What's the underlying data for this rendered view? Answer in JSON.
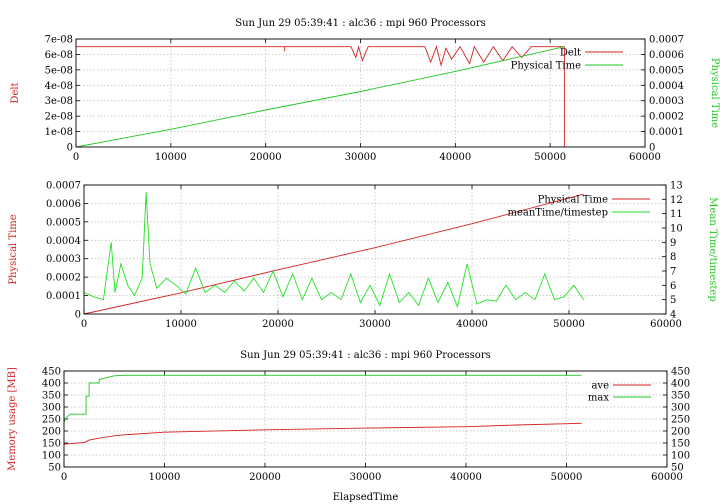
{
  "chart_data": [
    {
      "type": "line",
      "title": "Sun Jun 29 05:39:41 : alc36 : mpi 960 Processors",
      "xlabel": "",
      "ylabel": "Delt",
      "y2label": "Physical Time",
      "xlim": [
        0,
        60000
      ],
      "ylim": [
        0,
        7e-08
      ],
      "y2lim": [
        0,
        0.0007
      ],
      "xticks": [
        "0",
        "10000",
        "20000",
        "30000",
        "40000",
        "50000",
        "60000"
      ],
      "yticks": [
        "0",
        "1e-08",
        "2e-08",
        "3e-08",
        "4e-08",
        "5e-08",
        "6e-08",
        "7e-08"
      ],
      "y2ticks": [
        "0",
        "0.0001",
        "0.0002",
        "0.0003",
        "0.0004",
        "0.0005",
        "0.0006",
        "0.0007"
      ],
      "grid": true,
      "legend_position": "top-right",
      "series": [
        {
          "name": "Delt",
          "axis": "left",
          "color": "#d22222",
          "x": [
            0,
            22000,
            22000,
            22000,
            29000,
            29500,
            29800,
            30200,
            30800,
            31500,
            33000,
            35000,
            36800,
            37400,
            38000,
            38500,
            39000,
            39600,
            40500,
            41500,
            42000,
            43000,
            44000,
            45000,
            46000,
            47000,
            48000,
            50000,
            51000,
            51500,
            51500,
            51500
          ],
          "y": [
            6.5e-08,
            6.5e-08,
            6.2e-08,
            6.5e-08,
            6.5e-08,
            5.8e-08,
            6.5e-08,
            5.6e-08,
            6.5e-08,
            6.5e-08,
            6.5e-08,
            6.5e-08,
            6.5e-08,
            5.5e-08,
            6.5e-08,
            5.3e-08,
            6.4e-08,
            5.7e-08,
            6.5e-08,
            5.4e-08,
            6.5e-08,
            5.5e-08,
            6.5e-08,
            5.6e-08,
            6.5e-08,
            5.8e-08,
            6.5e-08,
            6.5e-08,
            6.5e-08,
            6.5e-08,
            0,
            0
          ]
        },
        {
          "name": "Physical Time",
          "axis": "right",
          "color": "#22c822",
          "x": [
            0,
            10000,
            20000,
            30000,
            40000,
            51500
          ],
          "y": [
            0.0,
            0.000115,
            0.00024,
            0.00036,
            0.00049,
            0.00065
          ]
        }
      ]
    },
    {
      "type": "line",
      "title": "",
      "xlabel": "",
      "ylabel": "Physical Time",
      "y2label": "Mean Time/timestep",
      "xlim": [
        0,
        60000
      ],
      "ylim": [
        0,
        0.0007
      ],
      "y2lim": [
        4,
        13
      ],
      "xticks": [
        "0",
        "10000",
        "20000",
        "30000",
        "40000",
        "50000",
        "60000"
      ],
      "yticks": [
        "0",
        "0.0001",
        "0.0002",
        "0.0003",
        "0.0004",
        "0.0005",
        "0.0006",
        "0.0007"
      ],
      "y2ticks": [
        "4",
        "5",
        "6",
        "7",
        "8",
        "9",
        "10",
        "11",
        "12",
        "13"
      ],
      "grid": true,
      "legend_position": "top-right",
      "series": [
        {
          "name": "Physical Time",
          "axis": "left",
          "color": "#d22222",
          "x": [
            0,
            10000,
            20000,
            30000,
            40000,
            51500
          ],
          "y": [
            0.0,
            0.000115,
            0.00024,
            0.00036,
            0.00049,
            0.00065
          ]
        },
        {
          "name": "meanTime/timestep",
          "axis": "right",
          "color": "#22e222",
          "x": [
            0,
            1000,
            2000,
            2800,
            3200,
            3800,
            4500,
            5200,
            6000,
            6400,
            6800,
            7500,
            8500,
            9500,
            10500,
            11500,
            12500,
            13500,
            14500,
            15500,
            16500,
            17500,
            18500,
            19500,
            20500,
            21500,
            22500,
            23500,
            24500,
            25500,
            26500,
            27500,
            28500,
            29500,
            30500,
            31500,
            32500,
            33500,
            34500,
            35500,
            36500,
            37500,
            38500,
            39500,
            40500,
            41500,
            42500,
            43500,
            44500,
            45500,
            46500,
            47500,
            48500,
            49500,
            50500,
            51500
          ],
          "y": [
            5.5,
            5.2,
            5.0,
            9.0,
            5.5,
            7.5,
            6.0,
            5.3,
            6.5,
            12.5,
            7.5,
            5.8,
            6.5,
            6.0,
            5.4,
            7.2,
            5.5,
            6.0,
            5.5,
            6.3,
            5.6,
            6.5,
            5.5,
            7.0,
            5.2,
            6.8,
            5.0,
            6.5,
            5.0,
            5.5,
            5.0,
            6.8,
            4.8,
            6.0,
            4.6,
            6.8,
            4.8,
            5.5,
            4.6,
            6.5,
            4.8,
            6.2,
            4.5,
            7.5,
            4.7,
            5.0,
            4.9,
            6.0,
            5.0,
            5.5,
            5.0,
            6.8,
            5.0,
            5.2,
            6.0,
            5.0
          ]
        }
      ]
    },
    {
      "type": "line",
      "title": "Sun Jun 29 05:39:41 : alc36 : mpi 960 Processors",
      "xlabel": "ElapsedTime",
      "ylabel": "Memory usage [MB]",
      "y2label": "",
      "xlim": [
        0,
        60000
      ],
      "ylim": [
        50,
        450
      ],
      "y2lim": [
        50,
        450
      ],
      "xticks": [
        "0",
        "10000",
        "20000",
        "30000",
        "40000",
        "50000",
        "60000"
      ],
      "yticks": [
        "50",
        "100",
        "150",
        "200",
        "250",
        "300",
        "350",
        "400",
        "450"
      ],
      "y2ticks": [
        "50",
        "100",
        "150",
        "200",
        "250",
        "300",
        "350",
        "400",
        "450"
      ],
      "grid": true,
      "legend_position": "top-right",
      "series": [
        {
          "name": "ave",
          "axis": "left",
          "color": "#d22222",
          "x": [
            0,
            2000,
            2500,
            3500,
            5000,
            6000,
            10000,
            20000,
            30000,
            40000,
            45000,
            51500
          ],
          "y": [
            145,
            152,
            162,
            170,
            180,
            184,
            195,
            205,
            212,
            218,
            225,
            232
          ]
        },
        {
          "name": "max",
          "axis": "left",
          "color": "#22c822",
          "x": [
            0,
            200,
            600,
            2200,
            2200,
            2500,
            2500,
            3500,
            3500,
            5000,
            6000,
            51500
          ],
          "y": [
            235,
            255,
            270,
            270,
            345,
            345,
            400,
            400,
            415,
            430,
            432,
            432
          ]
        }
      ]
    }
  ]
}
